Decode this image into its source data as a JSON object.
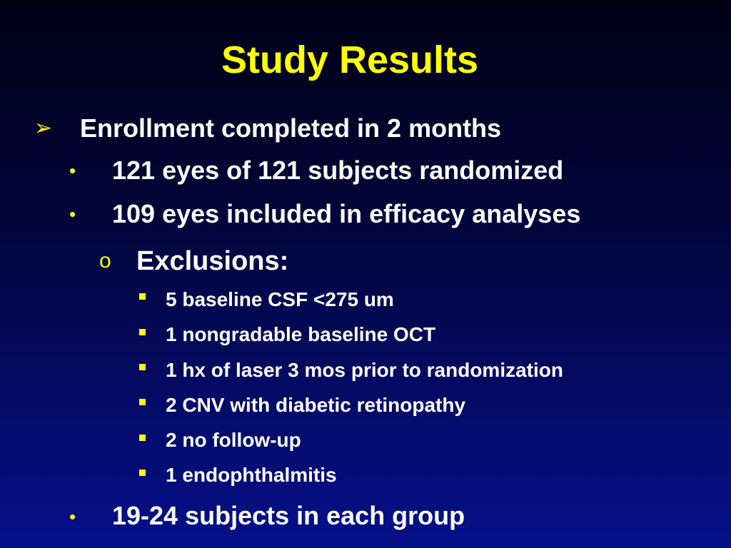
{
  "slide": {
    "title": "Study Results",
    "bullet_glyphs": {
      "arrow": "➢",
      "dot": "•",
      "circle": "o",
      "square": "square-bullet"
    },
    "colors": {
      "title": "#ffff00",
      "bullets": "#ffff00",
      "text": "#ffffff",
      "background_top": "#000014",
      "background_bottom": "#06108a"
    },
    "items": [
      {
        "level": 1,
        "text": "Enrollment completed in 2 months"
      },
      {
        "level": 2,
        "text": "121 eyes of 121 subjects randomized"
      },
      {
        "level": 2,
        "text": "109 eyes included in efficacy analyses"
      },
      {
        "level": 3,
        "text": "Exclusions:"
      },
      {
        "level": 4,
        "text": "5 baseline CSF <275 um"
      },
      {
        "level": 4,
        "text": "1 nongradable baseline OCT"
      },
      {
        "level": 4,
        "text": "1 hx of laser 3 mos prior to randomization"
      },
      {
        "level": 4,
        "text": "2 CNV with diabetic retinopathy"
      },
      {
        "level": 4,
        "text": "2 no follow-up"
      },
      {
        "level": 4,
        "text": "1 endophthalmitis"
      },
      {
        "level": 2,
        "text": "19-24 subjects in each group"
      }
    ]
  }
}
